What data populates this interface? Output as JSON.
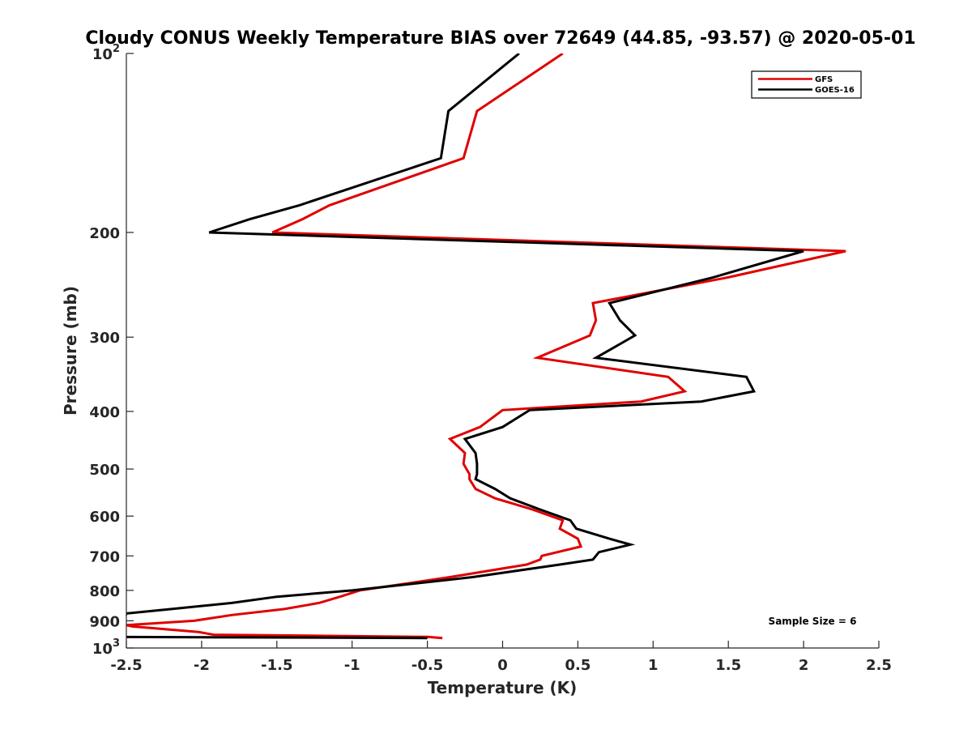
{
  "chart_data": {
    "type": "line",
    "title": "Cloudy CONUS Weekly Temperature BIAS over 72649 (44.85, -93.57) @ 2020-05-01",
    "xlabel": "Temperature (K)",
    "ylabel": "Pressure (mb)",
    "xlim": [
      -2.5,
      2.5
    ],
    "ylim": [
      1000,
      100
    ],
    "y_scale": "log",
    "x_ticks": [
      -2.5,
      -2,
      -1.5,
      -1,
      -0.5,
      0,
      0.5,
      1,
      1.5,
      2,
      2.5
    ],
    "x_tick_labels": [
      "-2.5",
      "-2",
      "-1.5",
      "-1",
      "-0.5",
      "0",
      "0.5",
      "1",
      "1.5",
      "2",
      "2.5"
    ],
    "y_ticks": [
      {
        "value": 100,
        "label": "10",
        "sup": "2"
      },
      {
        "value": 200,
        "label": "200",
        "sup": ""
      },
      {
        "value": 300,
        "label": "300",
        "sup": ""
      },
      {
        "value": 400,
        "label": "400",
        "sup": ""
      },
      {
        "value": 500,
        "label": "500",
        "sup": ""
      },
      {
        "value": 600,
        "label": "600",
        "sup": ""
      },
      {
        "value": 700,
        "label": "700",
        "sup": ""
      },
      {
        "value": 800,
        "label": "800",
        "sup": ""
      },
      {
        "value": 900,
        "label": "900",
        "sup": ""
      },
      {
        "value": 1000,
        "label": "10",
        "sup": "3"
      }
    ],
    "legend_position": "top-right",
    "annotation": "Sample Size = 6",
    "series": [
      {
        "name": "GFS",
        "color": "#e00000",
        "points": [
          [
            0.4,
            100
          ],
          [
            -0.17,
            125
          ],
          [
            -0.26,
            150
          ],
          [
            -1.15,
            180
          ],
          [
            -1.33,
            190
          ],
          [
            -1.53,
            200
          ],
          [
            2.28,
            215
          ],
          [
            1.5,
            238
          ],
          [
            0.6,
            263
          ],
          [
            0.62,
            281
          ],
          [
            0.58,
            298
          ],
          [
            0.23,
            325
          ],
          [
            1.1,
            350
          ],
          [
            1.21,
            370
          ],
          [
            0.92,
            385
          ],
          [
            0.0,
            398
          ],
          [
            -0.15,
            425
          ],
          [
            -0.35,
            445
          ],
          [
            -0.25,
            470
          ],
          [
            -0.26,
            490
          ],
          [
            -0.22,
            510
          ],
          [
            -0.22,
            520
          ],
          [
            -0.18,
            540
          ],
          [
            -0.05,
            560
          ],
          [
            0.2,
            585
          ],
          [
            0.4,
            610
          ],
          [
            0.38,
            630
          ],
          [
            0.5,
            655
          ],
          [
            0.52,
            675
          ],
          [
            0.26,
            700
          ],
          [
            0.25,
            710
          ],
          [
            0.16,
            724
          ],
          [
            -0.35,
            760
          ],
          [
            -0.95,
            800
          ],
          [
            -1.08,
            820
          ],
          [
            -1.22,
            840
          ],
          [
            -1.45,
            860
          ],
          [
            -1.8,
            880
          ],
          [
            -2.05,
            900
          ],
          [
            -2.5,
            915
          ],
          [
            -2.46,
            920
          ],
          [
            -2.02,
            940
          ],
          [
            -1.92,
            950
          ],
          [
            -0.5,
            958
          ],
          [
            -0.4,
            962
          ]
        ]
      },
      {
        "name": "GOES-16",
        "color": "#000000",
        "points": [
          [
            0.11,
            100
          ],
          [
            -0.36,
            125
          ],
          [
            -0.41,
            150
          ],
          [
            -1.35,
            180
          ],
          [
            -1.68,
            190
          ],
          [
            -1.95,
            200
          ],
          [
            2.0,
            215
          ],
          [
            1.4,
            238
          ],
          [
            0.71,
            263
          ],
          [
            0.78,
            281
          ],
          [
            0.88,
            298
          ],
          [
            0.62,
            325
          ],
          [
            1.62,
            350
          ],
          [
            1.67,
            370
          ],
          [
            1.32,
            385
          ],
          [
            0.18,
            398
          ],
          [
            0.0,
            425
          ],
          [
            -0.25,
            445
          ],
          [
            -0.18,
            470
          ],
          [
            -0.17,
            490
          ],
          [
            -0.17,
            510
          ],
          [
            -0.18,
            520
          ],
          [
            -0.05,
            540
          ],
          [
            0.05,
            560
          ],
          [
            0.25,
            585
          ],
          [
            0.45,
            610
          ],
          [
            0.49,
            630
          ],
          [
            0.71,
            655
          ],
          [
            0.85,
            670
          ],
          [
            0.64,
            690
          ],
          [
            0.6,
            710
          ],
          [
            0.38,
            724
          ],
          [
            -0.2,
            760
          ],
          [
            -1.0,
            800
          ],
          [
            -1.5,
            820
          ],
          [
            -1.8,
            840
          ],
          [
            -2.2,
            860
          ],
          [
            -2.5,
            875
          ],
          [
            -2.55,
            958
          ],
          [
            -0.5,
            962
          ]
        ]
      }
    ]
  }
}
